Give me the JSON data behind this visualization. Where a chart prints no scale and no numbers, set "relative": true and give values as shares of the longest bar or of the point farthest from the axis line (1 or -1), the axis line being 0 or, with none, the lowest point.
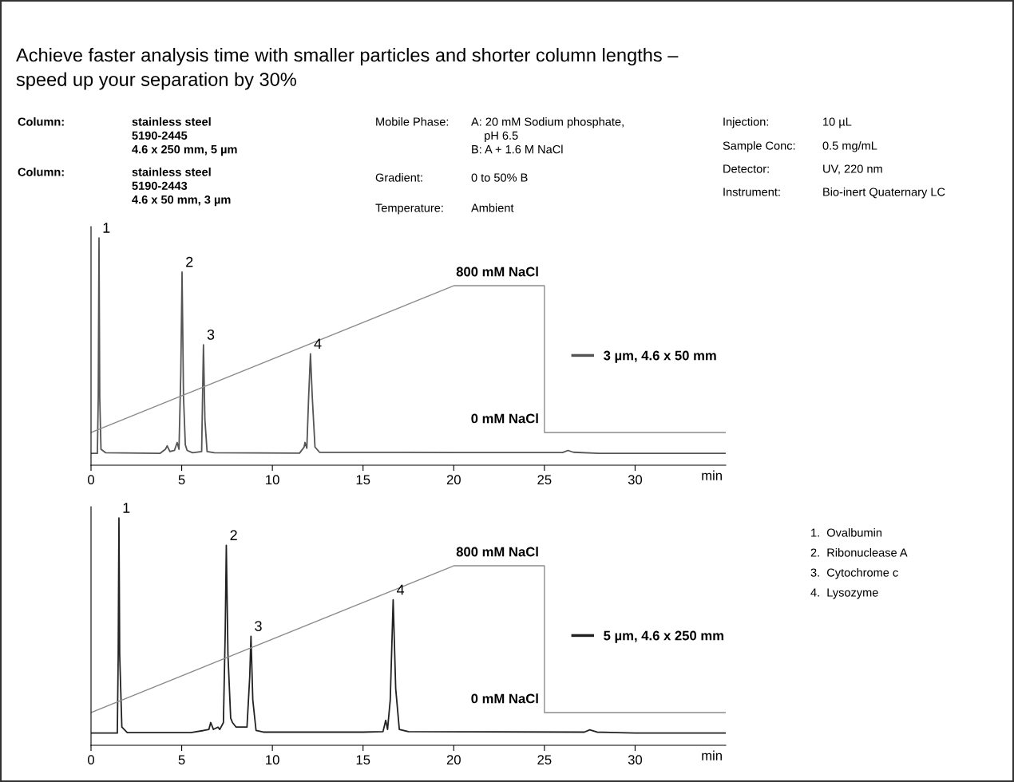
{
  "chart_data": [
    {
      "type": "line",
      "relative": true,
      "title": "Achieve faster analysis time with smaller particles and shorter column lengths –\nspeed up your separation by 30%",
      "xlabel": "min",
      "xlim": [
        0,
        35
      ],
      "xticks": [
        0,
        5,
        10,
        15,
        20,
        25,
        30
      ],
      "grid": false,
      "legend": "right",
      "marker": "none",
      "line_style": "solid",
      "annotations": [
        "Column:",
        "stainless steel\n5190-2445\n4.6 x 250 mm, 5 µm",
        "Column:",
        "stainless steel\n5190-2443\n4.6 x 50 mm, 3 µm",
        "Mobile Phase:",
        "A: 20 mM Sodium phosphate,\n    pH 6.5\nB: A + 1.6 M NaCl",
        "Gradient:",
        "0 to 50% B",
        "Temperature:",
        "Ambient",
        "Injection:",
        "10 µL",
        "Sample Conc:",
        "0.5 mg/mL",
        "Detector:",
        "UV, 220 nm",
        "Instrument:",
        "Bio-inert Quaternary LC",
        "1.  Ovalbumin",
        "2.  Ribonuclease A",
        "3.  Cytochrome c",
        "4.  Lysozyme",
        {
          "text": "800 mM NaCl",
          "x": 25,
          "y": 0.79
        },
        {
          "text": "0 mM NaCl",
          "x": 25,
          "y": 0.144
        },
        {
          "text": "1",
          "x": 0.44,
          "y": 1.0
        },
        {
          "text": "2",
          "x": 5.02,
          "y": 0.85
        },
        {
          "text": "3",
          "x": 6.2,
          "y": 0.53
        },
        {
          "text": "4",
          "x": 12.1,
          "y": 0.49
        }
      ],
      "series": [
        {
          "name": "3 µm, 4.6 x 50 mm",
          "color": "#555555",
          "x": [
            0,
            0.35,
            0.4,
            0.44,
            0.48,
            0.55,
            0.8,
            3.8,
            4.1,
            4.2,
            4.35,
            4.6,
            4.75,
            4.85,
            4.95,
            5.02,
            5.1,
            5.2,
            5.3,
            5.6,
            6.1,
            6.15,
            6.2,
            6.28,
            6.4,
            6.8,
            11.5,
            11.75,
            11.8,
            11.9,
            12.0,
            12.1,
            12.2,
            12.35,
            12.6,
            20,
            26.0,
            26.3,
            26.6,
            28,
            35
          ],
          "values": [
            0.052,
            0.052,
            0.3,
            1.0,
            0.3,
            0.07,
            0.055,
            0.052,
            0.07,
            0.085,
            0.06,
            0.065,
            0.1,
            0.07,
            0.4,
            0.85,
            0.3,
            0.09,
            0.065,
            0.055,
            0.06,
            0.3,
            0.53,
            0.2,
            0.06,
            0.055,
            0.053,
            0.08,
            0.1,
            0.075,
            0.3,
            0.49,
            0.3,
            0.08,
            0.057,
            0.056,
            0.056,
            0.065,
            0.057,
            0.052,
            0.052
          ]
        },
        {
          "color": "#8c8c8c",
          "x": [
            0,
            20,
            25,
            25,
            35
          ],
          "values": [
            0.144,
            0.79,
            0.79,
            0.144,
            0.144
          ]
        }
      ]
    },
    {
      "type": "line",
      "relative": true,
      "xlabel": "min",
      "xlim": [
        0,
        35
      ],
      "xticks": [
        0,
        5,
        10,
        15,
        20,
        25,
        30
      ],
      "grid": false,
      "legend": "right",
      "marker": "none",
      "line_style": "solid",
      "annotations": [
        {
          "text": "800 mM NaCl",
          "x": 25,
          "y": 0.79
        },
        {
          "text": "0 mM NaCl",
          "x": 25,
          "y": 0.144
        },
        {
          "text": "1",
          "x": 1.54,
          "y": 1.0
        },
        {
          "text": "2",
          "x": 7.46,
          "y": 0.88
        },
        {
          "text": "3",
          "x": 8.82,
          "y": 0.48
        },
        {
          "text": "4",
          "x": 16.66,
          "y": 0.64
        }
      ],
      "series": [
        {
          "name": "5 µm, 4.6 x 250 mm",
          "color": "#222222",
          "x": [
            0,
            1.45,
            1.5,
            1.54,
            1.58,
            1.7,
            2.0,
            5.5,
            6.2,
            6.5,
            6.6,
            6.75,
            7.0,
            7.1,
            7.3,
            7.4,
            7.46,
            7.55,
            7.7,
            7.8,
            8.0,
            8.6,
            8.75,
            8.82,
            8.92,
            9.1,
            9.5,
            15,
            16.1,
            16.25,
            16.35,
            16.5,
            16.66,
            16.8,
            17.0,
            17.5,
            27.2,
            27.5,
            27.9,
            30,
            35
          ],
          "values": [
            0.054,
            0.054,
            0.4,
            1.0,
            0.4,
            0.08,
            0.056,
            0.056,
            0.065,
            0.07,
            0.1,
            0.07,
            0.08,
            0.07,
            0.1,
            0.5,
            0.88,
            0.4,
            0.12,
            0.1,
            0.08,
            0.08,
            0.3,
            0.48,
            0.2,
            0.065,
            0.058,
            0.058,
            0.06,
            0.11,
            0.07,
            0.2,
            0.64,
            0.25,
            0.07,
            0.06,
            0.058,
            0.068,
            0.058,
            0.054,
            0.054
          ]
        },
        {
          "color": "#8c8c8c",
          "x": [
            0,
            20,
            25,
            25,
            35
          ],
          "values": [
            0.144,
            0.79,
            0.79,
            0.144,
            0.144
          ]
        }
      ]
    }
  ]
}
